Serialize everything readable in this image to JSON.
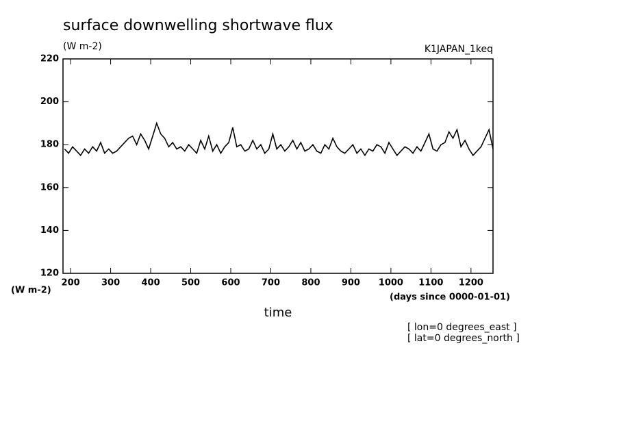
{
  "chart_data": {
    "type": "line",
    "title": "surface downwelling shortwave flux",
    "subtitle": "(W m-2)",
    "annotations": [
      "K1JAPAN_1keq",
      "[ lon=0 degrees_east ]",
      "[ lat=0 degrees_north ]"
    ],
    "ylabel": "(W m-2)",
    "xlabel": "time",
    "xunits": "(days since 0000-01-01)",
    "xlim": [
      181,
      1255
    ],
    "xticks": [
      200,
      300,
      400,
      500,
      600,
      700,
      800,
      900,
      1000,
      1100,
      1200
    ],
    "ylim": [
      120,
      220
    ],
    "yticks": [
      120,
      140,
      160,
      180,
      200,
      220
    ],
    "color": "#000000",
    "x": [
      185,
      195,
      205,
      215,
      225,
      235,
      245,
      255,
      265,
      275,
      285,
      295,
      305,
      315,
      325,
      335,
      345,
      355,
      365,
      375,
      385,
      395,
      405,
      415,
      425,
      435,
      445,
      455,
      465,
      475,
      485,
      495,
      505,
      515,
      525,
      535,
      545,
      555,
      565,
      575,
      585,
      595,
      605,
      615,
      625,
      635,
      645,
      655,
      665,
      675,
      685,
      695,
      705,
      715,
      725,
      735,
      745,
      755,
      765,
      775,
      785,
      795,
      805,
      815,
      825,
      835,
      845,
      855,
      865,
      875,
      885,
      895,
      905,
      915,
      925,
      935,
      945,
      955,
      965,
      975,
      985,
      995,
      1005,
      1015,
      1025,
      1035,
      1045,
      1055,
      1065,
      1075,
      1085,
      1095,
      1105,
      1115,
      1125,
      1135,
      1145,
      1155,
      1165,
      1175,
      1185,
      1195,
      1205,
      1215,
      1225,
      1235,
      1245,
      1255
    ],
    "values": [
      178,
      176,
      179,
      177,
      175,
      178,
      176,
      179,
      177,
      181,
      176,
      178,
      176,
      177,
      179,
      181,
      183,
      184,
      180,
      185,
      182,
      178,
      184,
      190,
      185,
      183,
      179,
      181,
      178,
      179,
      177,
      180,
      178,
      176,
      182,
      178,
      184,
      177,
      180,
      176,
      179,
      181,
      188,
      179,
      180,
      177,
      178,
      182,
      178,
      180,
      176,
      178,
      185,
      178,
      180,
      177,
      179,
      182,
      178,
      181,
      177,
      178,
      180,
      177,
      176,
      180,
      178,
      183,
      179,
      177,
      176,
      178,
      180,
      176,
      178,
      175,
      178,
      177,
      180,
      179,
      176,
      181,
      178,
      175,
      177,
      179,
      178,
      176,
      179,
      177,
      181,
      185,
      178,
      177,
      180,
      181,
      186,
      183,
      187,
      179,
      182,
      178,
      175,
      177,
      179,
      183,
      187,
      178
    ]
  }
}
